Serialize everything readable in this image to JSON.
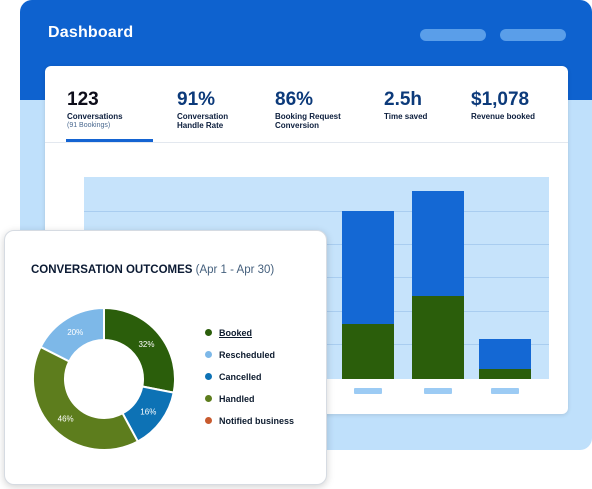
{
  "header": {
    "title": "Dashboard"
  },
  "stats": [
    {
      "value": "123",
      "label": "Conversations",
      "sub": "(91 Bookings)"
    },
    {
      "value": "91%",
      "label": "Conversation Handle Rate"
    },
    {
      "value": "86%",
      "label": "Booking Request Conversion"
    },
    {
      "value": "2.5h",
      "label": "Time saved"
    },
    {
      "value": "$1,078",
      "label": "Revenue booked"
    }
  ],
  "bar_chart": {
    "type": "bar",
    "bars": [
      {
        "total": 0.83,
        "lower": 0.27
      },
      {
        "total": 0.93,
        "lower": 0.41
      },
      {
        "total": 0.2,
        "lower": 0.05
      }
    ]
  },
  "outcomes": {
    "title": "CONVERSATION OUTCOMES",
    "period": "(Apr 1 - Apr 30)",
    "legend": [
      {
        "label": "Booked",
        "color": "#2b5e0b",
        "active": true
      },
      {
        "label": "Rescheduled",
        "color": "#7db8e8"
      },
      {
        "label": "Cancelled",
        "color": "#0d72b5"
      },
      {
        "label": "Handled",
        "color": "#5d7d1d"
      },
      {
        "label": "Notified business",
        "color": "#c85a2e"
      }
    ]
  },
  "chart_data": {
    "type": "pie",
    "categories": [
      "Booked",
      "Cancelled",
      "Handled",
      "Rescheduled"
    ],
    "values": [
      32,
      16,
      46,
      20
    ],
    "labels": [
      "32%",
      "16%",
      "46%",
      "20%"
    ],
    "colors": [
      "#2b5e0b",
      "#0d72b5",
      "#5d7d1d",
      "#7db8e8"
    ]
  }
}
